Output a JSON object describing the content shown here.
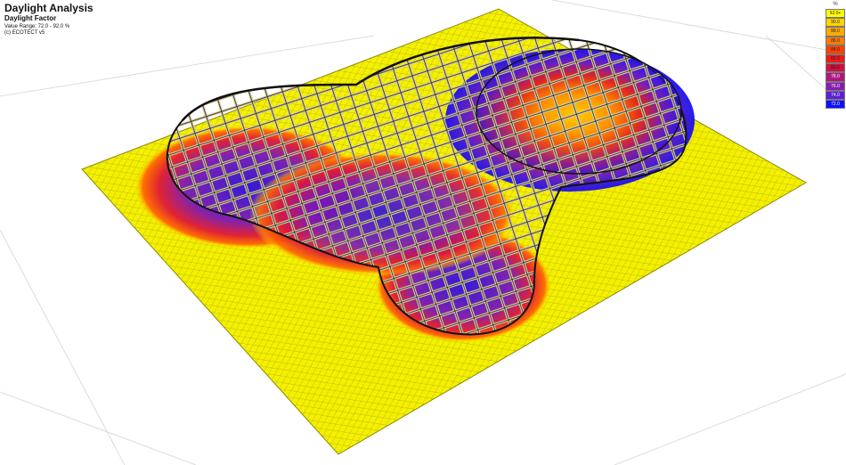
{
  "header": {
    "title": "Daylight Analysis",
    "subtitle": "Daylight Factor",
    "value_range": "Value Range: 72.0 - 92.0 %",
    "copyright": "(c) ECOTECT v5"
  },
  "legend": {
    "unit": "%",
    "entries": [
      {
        "label": "92.0+",
        "color": "#ffff00"
      },
      {
        "label": "90.0",
        "color": "#ffd400"
      },
      {
        "label": "88.0",
        "color": "#ffaa00"
      },
      {
        "label": "86.0",
        "color": "#ff7a00"
      },
      {
        "label": "84.0",
        "color": "#ff4000"
      },
      {
        "label": "82.0",
        "color": "#f01818"
      },
      {
        "label": "80.0",
        "color": "#d01040"
      },
      {
        "label": "78.0",
        "color": "#b01880"
      },
      {
        "label": "76.0",
        "color": "#8a1cb0"
      },
      {
        "label": "74.0",
        "color": "#5a20d8"
      },
      {
        "label": "72.0",
        "color": "#1010ff"
      }
    ]
  }
}
